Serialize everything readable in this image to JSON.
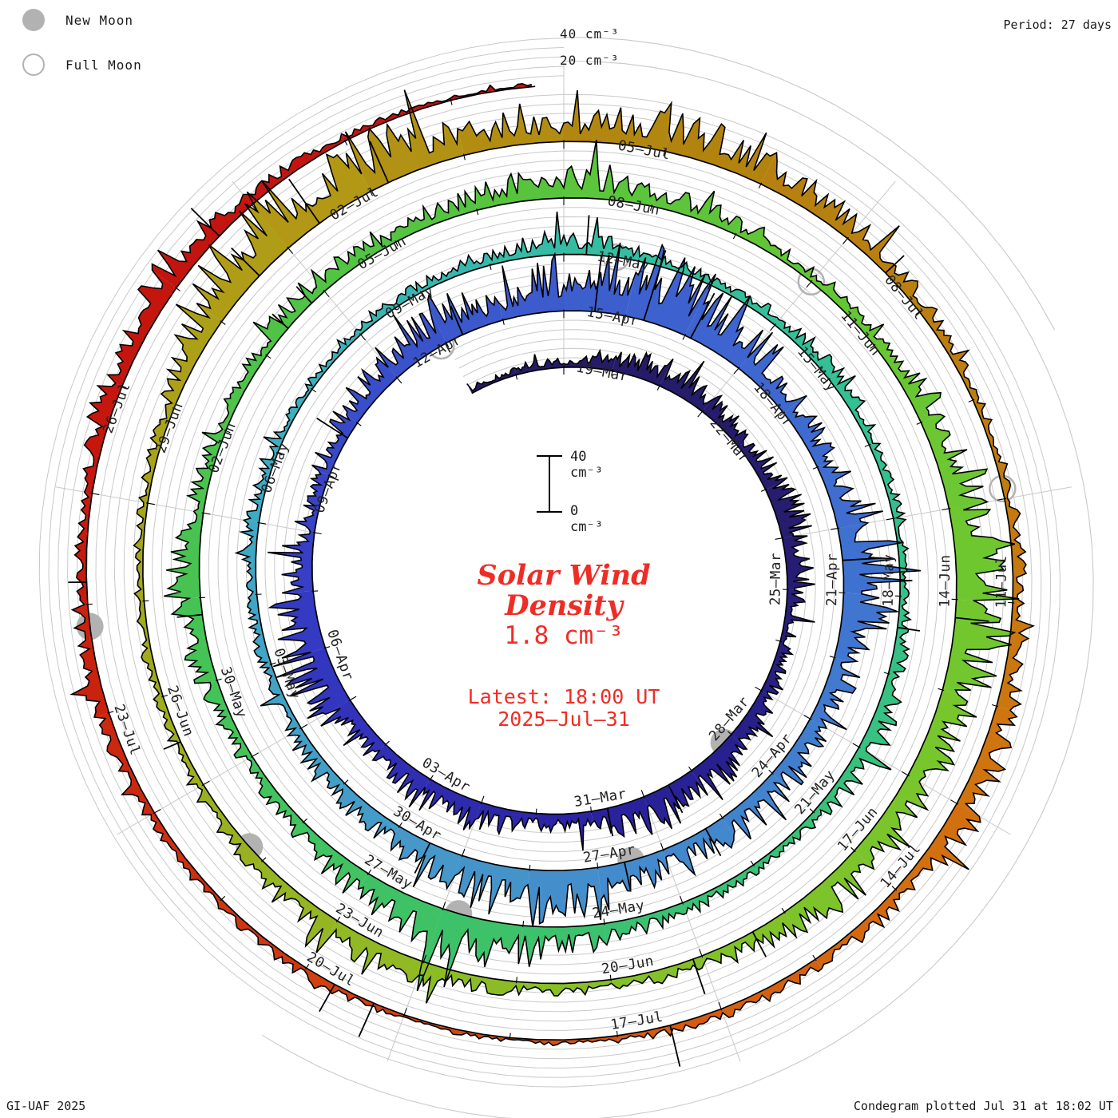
{
  "header": {
    "period_label": "Period: 27 days"
  },
  "legend": {
    "new_moon_label": "New Moon",
    "full_moon_label": "Full Moon",
    "moon_gray": "#b2b2b2"
  },
  "footer": {
    "left": "GI-UAF 2025",
    "right": "Condegram plotted Jul 31 at 18:02 UT"
  },
  "center": {
    "title_line1": "Solar Wind",
    "title_line2": "Density",
    "current_value": "1.8 cm⁻³",
    "latest_line1": "Latest: 18:00 UT",
    "latest_line2": "2025–Jul–31",
    "scalebar_top": "40 cm⁻³",
    "scalebar_bottom": "0 cm⁻³",
    "accent_red": "#ee2d26"
  },
  "axis": {
    "outer_labels": [
      "40 cm⁻³",
      "20 cm⁻³"
    ]
  },
  "chart_data": {
    "type": "condegram-spiral",
    "title": "Solar Wind Density",
    "units": "cm⁻³",
    "period_days": 27,
    "start_date": "2025-03-17",
    "end_date_label": "2025-Jul-31 18:00 UT",
    "radial_scale_max": 40,
    "grid_on": true,
    "date_labels": [
      "19–Mar",
      "22–Mar",
      "25–Mar",
      "28–Mar",
      "31–Mar",
      "03–Apr",
      "06–Apr",
      "09–Apr",
      "12–Apr",
      "15–Apr",
      "18–Apr",
      "21–Apr",
      "24–Apr",
      "27–Apr",
      "30–Apr",
      "03–May",
      "06–May",
      "09–May",
      "12–May",
      "15–May",
      "18–May",
      "21–May",
      "24–May",
      "27–May",
      "30–May",
      "02–Jun",
      "05–Jun",
      "08–Jun",
      "11–Jun",
      "14–Jun",
      "17–Jun",
      "20–Jun",
      "23–Jun",
      "26–Jun",
      "29–Jun",
      "02–Jul",
      "05–Jul",
      "08–Jul",
      "11–Jul",
      "14–Jul",
      "17–Jul",
      "20–Jul",
      "23–Jul",
      "26–Jul"
    ],
    "daily_density": [
      3,
      4,
      5,
      9,
      13,
      11,
      7,
      12,
      15,
      9,
      6,
      9,
      13,
      16,
      18,
      11,
      8,
      13,
      16,
      9,
      20,
      26,
      18,
      7,
      9,
      12,
      16,
      22,
      13,
      26,
      36,
      33,
      22,
      13,
      9,
      24,
      30,
      14,
      10,
      13,
      15,
      11,
      22,
      26,
      17,
      12,
      10,
      8,
      6,
      5,
      7,
      5,
      4,
      6,
      5,
      7,
      11,
      7,
      5,
      6,
      8,
      6,
      5,
      4,
      9,
      12,
      6,
      5,
      7,
      10,
      18,
      22,
      14,
      8,
      6,
      9,
      16,
      10,
      6,
      8,
      11,
      6,
      10,
      16,
      11,
      7,
      6,
      9,
      14,
      24,
      28,
      20,
      14,
      20,
      12,
      7,
      5,
      6,
      10,
      14,
      8,
      6,
      5,
      4,
      4,
      6,
      22,
      32,
      28,
      16,
      12,
      20,
      16,
      12,
      7,
      4,
      5,
      7,
      10,
      14,
      9,
      5,
      6,
      3,
      2,
      3,
      5,
      4,
      5,
      8,
      6,
      5,
      12,
      15,
      8,
      4,
      1.8
    ],
    "spikes": [
      [
        13.5,
        22
      ],
      [
        14.7,
        20
      ],
      [
        24.7,
        26
      ],
      [
        27.3,
        22
      ],
      [
        29.5,
        40
      ],
      [
        30.3,
        52
      ],
      [
        31.1,
        36
      ],
      [
        35.5,
        28
      ],
      [
        40.3,
        22
      ],
      [
        41.6,
        20
      ],
      [
        44.5,
        24
      ],
      [
        56.3,
        28
      ],
      [
        63.4,
        16
      ],
      [
        75.8,
        18
      ],
      [
        79.4,
        15
      ],
      [
        79.8,
        16
      ],
      [
        90.2,
        24
      ],
      [
        94.4,
        20
      ],
      [
        95.1,
        26
      ],
      [
        101.5,
        13
      ],
      [
        106.6,
        28
      ],
      [
        107.4,
        38
      ],
      [
        108.2,
        32
      ],
      [
        113.5,
        18
      ],
      [
        122.5,
        30
      ],
      [
        125.3,
        26
      ],
      [
        125.7,
        22
      ],
      [
        130.2,
        13
      ],
      [
        133.6,
        28
      ]
    ],
    "moons": {
      "new_moon_days": [
        12.2,
        41.5,
        70.8,
        100.2,
        129.8
      ],
      "full_moon_days": [
        26.9,
        56.7,
        86.0,
        115.9
      ]
    },
    "color_stops": [
      [
        0,
        "#241a63"
      ],
      [
        8,
        "#261d70"
      ],
      [
        15,
        "#2a22a0"
      ],
      [
        21,
        "#3438c2"
      ],
      [
        28,
        "#3c5ace"
      ],
      [
        35,
        "#3f70d0"
      ],
      [
        41,
        "#4389cc"
      ],
      [
        45,
        "#459ac8"
      ],
      [
        51,
        "#3dadc4"
      ],
      [
        56,
        "#35bda4"
      ],
      [
        61,
        "#33c090"
      ],
      [
        68,
        "#3ac173"
      ],
      [
        74,
        "#43c35b"
      ],
      [
        80,
        "#50c344"
      ],
      [
        86,
        "#63c636"
      ],
      [
        91,
        "#74c72d"
      ],
      [
        97,
        "#8abe26"
      ],
      [
        103,
        "#a4a81d"
      ],
      [
        107,
        "#b29b16"
      ],
      [
        111,
        "#b28410"
      ],
      [
        115,
        "#bd7d10"
      ],
      [
        119,
        "#d2730e"
      ],
      [
        123,
        "#d55612"
      ],
      [
        127,
        "#cf3210"
      ],
      [
        131,
        "#c5180e"
      ],
      [
        137,
        "#c01111"
      ]
    ],
    "grid_color": "#c9c9c9",
    "label_color": "#222222"
  }
}
